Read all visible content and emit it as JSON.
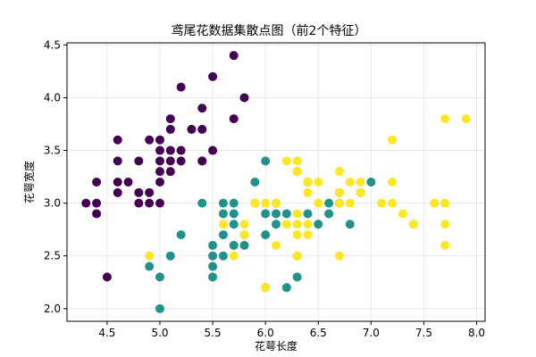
{
  "chart_data": {
    "type": "scatter",
    "title": "鸢尾花数据集散点图（前2个特征）",
    "xlabel": "花萼长度",
    "ylabel": "花萼宽度",
    "xlim": [
      4.12,
      8.08
    ],
    "ylim": [
      1.88,
      4.52
    ],
    "xticks": [
      "4.5",
      "5.0",
      "5.5",
      "6.0",
      "6.5",
      "7.0",
      "7.5",
      "8.0"
    ],
    "yticks": [
      "2.0",
      "2.5",
      "3.0",
      "3.5",
      "4.0",
      "4.5"
    ],
    "grid": true,
    "legend": "none",
    "series": [
      {
        "color": "#440154",
        "points": [
          [
            4.3,
            3.0
          ],
          [
            4.4,
            3.2
          ],
          [
            4.4,
            3.0
          ],
          [
            4.4,
            2.9
          ],
          [
            4.5,
            2.3
          ],
          [
            4.6,
            3.6
          ],
          [
            4.6,
            3.4
          ],
          [
            4.6,
            3.2
          ],
          [
            4.6,
            3.1
          ],
          [
            4.7,
            3.2
          ],
          [
            4.8,
            3.4
          ],
          [
            4.8,
            3.1
          ],
          [
            4.8,
            3.0
          ],
          [
            4.9,
            3.6
          ],
          [
            4.9,
            3.1
          ],
          [
            4.9,
            3.0
          ],
          [
            5.0,
            3.6
          ],
          [
            5.0,
            3.5
          ],
          [
            5.0,
            3.4
          ],
          [
            5.0,
            3.3
          ],
          [
            5.0,
            3.2
          ],
          [
            5.0,
            3.0
          ],
          [
            5.1,
            3.8
          ],
          [
            5.1,
            3.7
          ],
          [
            5.1,
            3.5
          ],
          [
            5.1,
            3.4
          ],
          [
            5.1,
            3.3
          ],
          [
            5.2,
            4.1
          ],
          [
            5.2,
            3.5
          ],
          [
            5.2,
            3.4
          ],
          [
            5.3,
            3.7
          ],
          [
            5.4,
            3.9
          ],
          [
            5.4,
            3.7
          ],
          [
            5.4,
            3.4
          ],
          [
            5.5,
            4.2
          ],
          [
            5.5,
            3.5
          ],
          [
            5.7,
            4.4
          ],
          [
            5.7,
            3.8
          ],
          [
            5.8,
            4.0
          ],
          [
            5.4,
            3.4
          ]
        ]
      },
      {
        "color": "#21918c",
        "points": [
          [
            4.9,
            2.4
          ],
          [
            5.0,
            2.3
          ],
          [
            5.0,
            2.0
          ],
          [
            5.1,
            2.5
          ],
          [
            5.2,
            2.7
          ],
          [
            5.4,
            3.0
          ],
          [
            5.5,
            2.6
          ],
          [
            5.5,
            2.5
          ],
          [
            5.5,
            2.4
          ],
          [
            5.5,
            2.3
          ],
          [
            5.6,
            3.0
          ],
          [
            5.6,
            2.9
          ],
          [
            5.6,
            2.7
          ],
          [
            5.6,
            2.5
          ],
          [
            5.7,
            3.0
          ],
          [
            5.7,
            2.9
          ],
          [
            5.7,
            2.8
          ],
          [
            5.7,
            2.6
          ],
          [
            5.8,
            2.7
          ],
          [
            5.8,
            2.6
          ],
          [
            5.9,
            3.2
          ],
          [
            5.9,
            3.0
          ],
          [
            6.0,
            3.4
          ],
          [
            6.0,
            2.9
          ],
          [
            6.0,
            2.7
          ],
          [
            6.0,
            2.2
          ],
          [
            6.1,
            3.0
          ],
          [
            6.1,
            2.9
          ],
          [
            6.1,
            2.8
          ],
          [
            6.2,
            2.9
          ],
          [
            6.2,
            2.2
          ],
          [
            6.3,
            3.3
          ],
          [
            6.3,
            2.5
          ],
          [
            6.3,
            2.3
          ],
          [
            6.4,
            3.2
          ],
          [
            6.4,
            2.9
          ],
          [
            6.5,
            2.8
          ],
          [
            6.6,
            3.0
          ],
          [
            6.6,
            2.9
          ],
          [
            6.7,
            3.1
          ],
          [
            6.7,
            3.0
          ],
          [
            6.8,
            2.8
          ],
          [
            6.9,
            3.1
          ],
          [
            7.0,
            3.2
          ]
        ]
      },
      {
        "color": "#fde725",
        "points": [
          [
            4.9,
            2.5
          ],
          [
            5.6,
            2.8
          ],
          [
            5.7,
            2.5
          ],
          [
            5.8,
            2.8
          ],
          [
            5.8,
            2.7
          ],
          [
            5.9,
            3.0
          ],
          [
            6.0,
            3.0
          ],
          [
            6.0,
            2.2
          ],
          [
            6.1,
            3.0
          ],
          [
            6.1,
            2.6
          ],
          [
            6.2,
            3.4
          ],
          [
            6.2,
            2.8
          ],
          [
            6.3,
            3.4
          ],
          [
            6.3,
            3.3
          ],
          [
            6.3,
            2.9
          ],
          [
            6.3,
            2.8
          ],
          [
            6.3,
            2.7
          ],
          [
            6.3,
            2.5
          ],
          [
            6.4,
            3.2
          ],
          [
            6.4,
            3.1
          ],
          [
            6.4,
            2.8
          ],
          [
            6.4,
            2.7
          ],
          [
            6.5,
            3.2
          ],
          [
            6.5,
            3.0
          ],
          [
            6.7,
            3.3
          ],
          [
            6.7,
            3.1
          ],
          [
            6.7,
            3.0
          ],
          [
            6.7,
            2.5
          ],
          [
            6.8,
            3.2
          ],
          [
            6.8,
            3.0
          ],
          [
            6.9,
            3.2
          ],
          [
            6.9,
            3.1
          ],
          [
            7.1,
            3.0
          ],
          [
            7.2,
            3.6
          ],
          [
            7.2,
            3.2
          ],
          [
            7.2,
            3.0
          ],
          [
            7.3,
            2.9
          ],
          [
            7.4,
            2.8
          ],
          [
            7.6,
            3.0
          ],
          [
            7.7,
            3.8
          ],
          [
            7.7,
            3.0
          ],
          [
            7.7,
            2.8
          ],
          [
            7.7,
            2.6
          ],
          [
            7.9,
            3.8
          ]
        ]
      }
    ]
  }
}
